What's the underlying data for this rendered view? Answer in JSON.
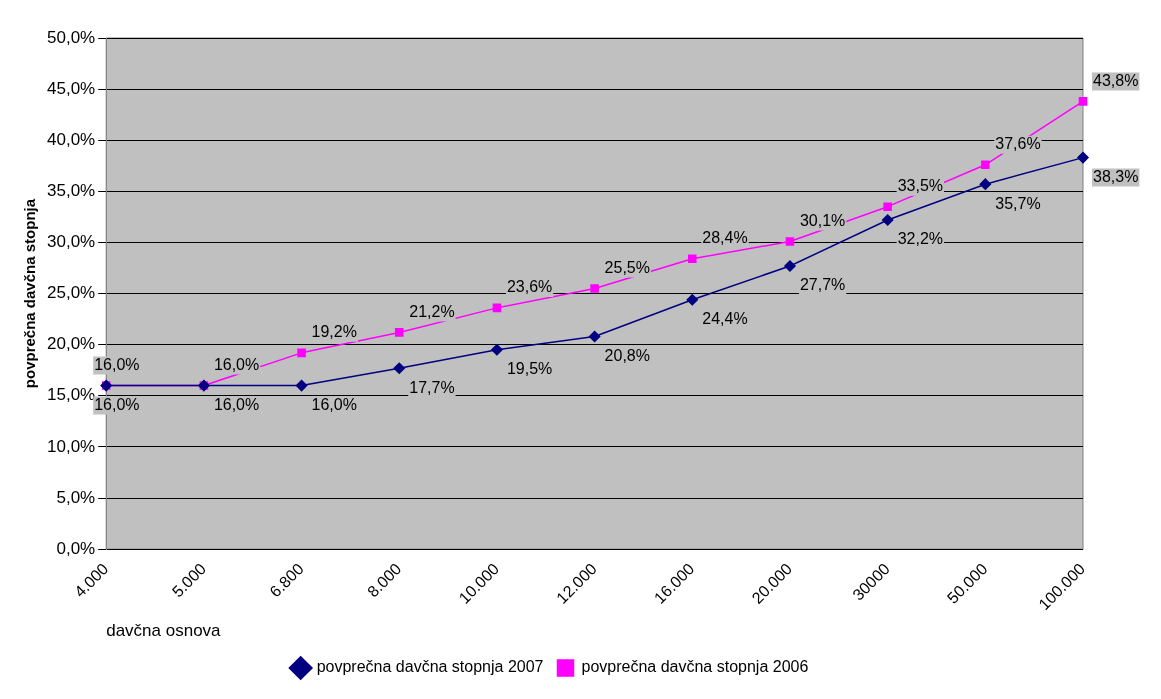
{
  "chart_data": {
    "type": "line",
    "ylabel": "povprečna davčna stopnja",
    "xlabel": "davčna osnova",
    "categories": [
      "4.000",
      "5.000",
      "6.800",
      "8.000",
      "10.000",
      "12.000",
      "16.000",
      "20.000",
      "30000",
      "50.000",
      "100.000"
    ],
    "series": [
      {
        "name": "povprečna davčna stopnja 2007",
        "color": "#000080",
        "marker": "diamond",
        "values": [
          16.0,
          16.0,
          16.0,
          17.7,
          19.5,
          20.8,
          24.4,
          27.7,
          32.2,
          35.7,
          38.3
        ],
        "value_labels": [
          "16,0%",
          "16,0%",
          "16,0%",
          "17,7%",
          "19,5%",
          "20,8%",
          "24,4%",
          "27,7%",
          "32,2%",
          "35,7%",
          "38,3%"
        ]
      },
      {
        "name": "povprečna davčna stopnja 2006",
        "color": "#ff00ff",
        "marker": "square",
        "values": [
          16.0,
          16.0,
          19.2,
          21.2,
          23.6,
          25.5,
          28.4,
          30.1,
          33.5,
          37.6,
          43.8
        ],
        "value_labels": [
          "16,0%",
          "16,0%",
          "19,2%",
          "21,2%",
          "23,6%",
          "25,5%",
          "28,4%",
          "30,1%",
          "33,5%",
          "37,6%",
          "43,8%"
        ]
      }
    ],
    "ylim": [
      0,
      50
    ],
    "yticks": [
      {
        "value": 0,
        "label": "0,0%"
      },
      {
        "value": 5,
        "label": "5,0%"
      },
      {
        "value": 10,
        "label": "10,0%"
      },
      {
        "value": 15,
        "label": "15,0%"
      },
      {
        "value": 20,
        "label": "20,0%"
      },
      {
        "value": 25,
        "label": "25,0%"
      },
      {
        "value": 30,
        "label": "30,0%"
      },
      {
        "value": 35,
        "label": "35,0%"
      },
      {
        "value": 40,
        "label": "40,0%"
      },
      {
        "value": 45,
        "label": "45,0%"
      },
      {
        "value": 50,
        "label": "50,0%"
      }
    ],
    "grid": "y",
    "legend": "bottom",
    "line_style": "solid"
  }
}
